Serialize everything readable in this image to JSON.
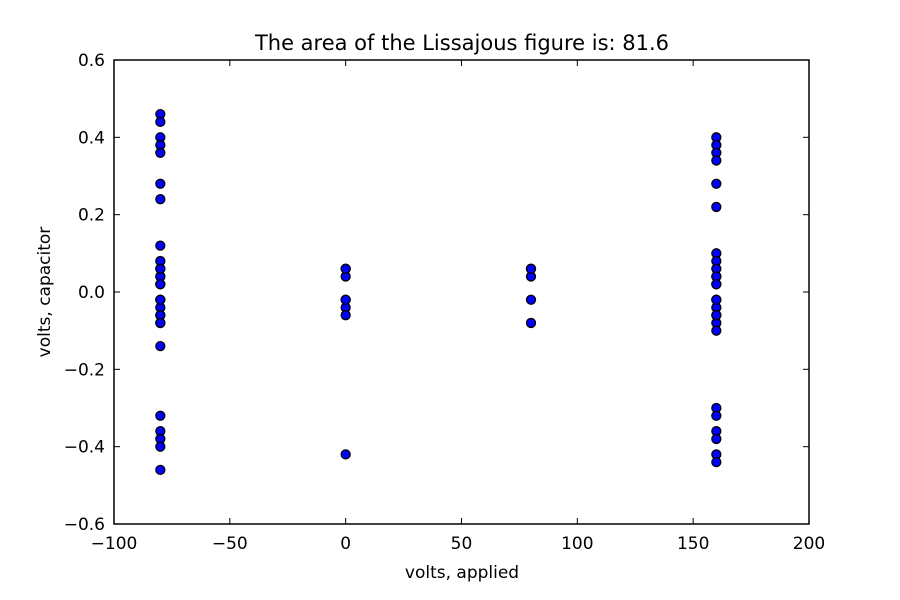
{
  "chart_data": {
    "type": "scatter",
    "title": "The area of the Lissajous figure is: 81.6",
    "xlabel": "volts, applied",
    "ylabel": "volts, capacitor",
    "xlim": [
      -100,
      200
    ],
    "ylim": [
      -0.6,
      0.6
    ],
    "xticks": [
      "−100",
      "−50",
      "0",
      "50",
      "100",
      "150",
      "200"
    ],
    "xtick_values": [
      -100,
      -50,
      0,
      50,
      100,
      150,
      200
    ],
    "yticks": [
      "0.6",
      "0.4",
      "0.2",
      "0.0",
      "−0.2",
      "−0.4",
      "−0.6"
    ],
    "ytick_values": [
      0.6,
      0.4,
      0.2,
      0.0,
      -0.2,
      -0.4,
      -0.6
    ],
    "grid": false,
    "marker_color": "#0000ff",
    "series": [
      {
        "x": [
          -80,
          -80,
          -80,
          -80,
          -80,
          -80,
          -80,
          -80,
          -80,
          -80,
          -80,
          -80,
          -80,
          -80,
          -80,
          -80,
          -80,
          -80,
          -80,
          -80,
          -80,
          -80,
          -80,
          -80,
          -80,
          -80,
          -80,
          -80,
          0,
          0,
          0,
          0,
          0,
          0,
          0,
          0,
          80,
          80,
          80,
          80,
          80,
          160,
          160,
          160,
          160,
          160,
          160,
          160,
          160,
          160,
          160,
          160,
          160,
          160,
          160,
          160,
          160,
          160,
          160,
          160,
          160,
          160,
          160,
          160,
          160,
          160,
          160
        ],
        "y": [
          0.46,
          0.44,
          0.4,
          0.38,
          0.36,
          0.28,
          0.24,
          0.12,
          0.08,
          0.06,
          0.04,
          0.02,
          -0.02,
          -0.04,
          -0.06,
          -0.08,
          0.04,
          -0.02,
          -0.14,
          -0.32,
          -0.36,
          -0.38,
          -0.4,
          -0.46,
          0.06,
          -0.06,
          0.02,
          -0.08,
          0.06,
          0.04,
          -0.02,
          -0.04,
          -0.06,
          -0.42,
          0.06,
          -0.02,
          0.06,
          0.04,
          -0.02,
          -0.08,
          0.06,
          0.4,
          0.38,
          0.36,
          0.34,
          0.28,
          0.22,
          0.1,
          0.08,
          0.06,
          0.04,
          0.02,
          -0.02,
          -0.04,
          -0.06,
          -0.08,
          -0.1,
          -0.3,
          -0.32,
          -0.36,
          -0.38,
          -0.42,
          -0.44,
          0.04,
          -0.06,
          0.02,
          -0.02
        ]
      }
    ]
  }
}
